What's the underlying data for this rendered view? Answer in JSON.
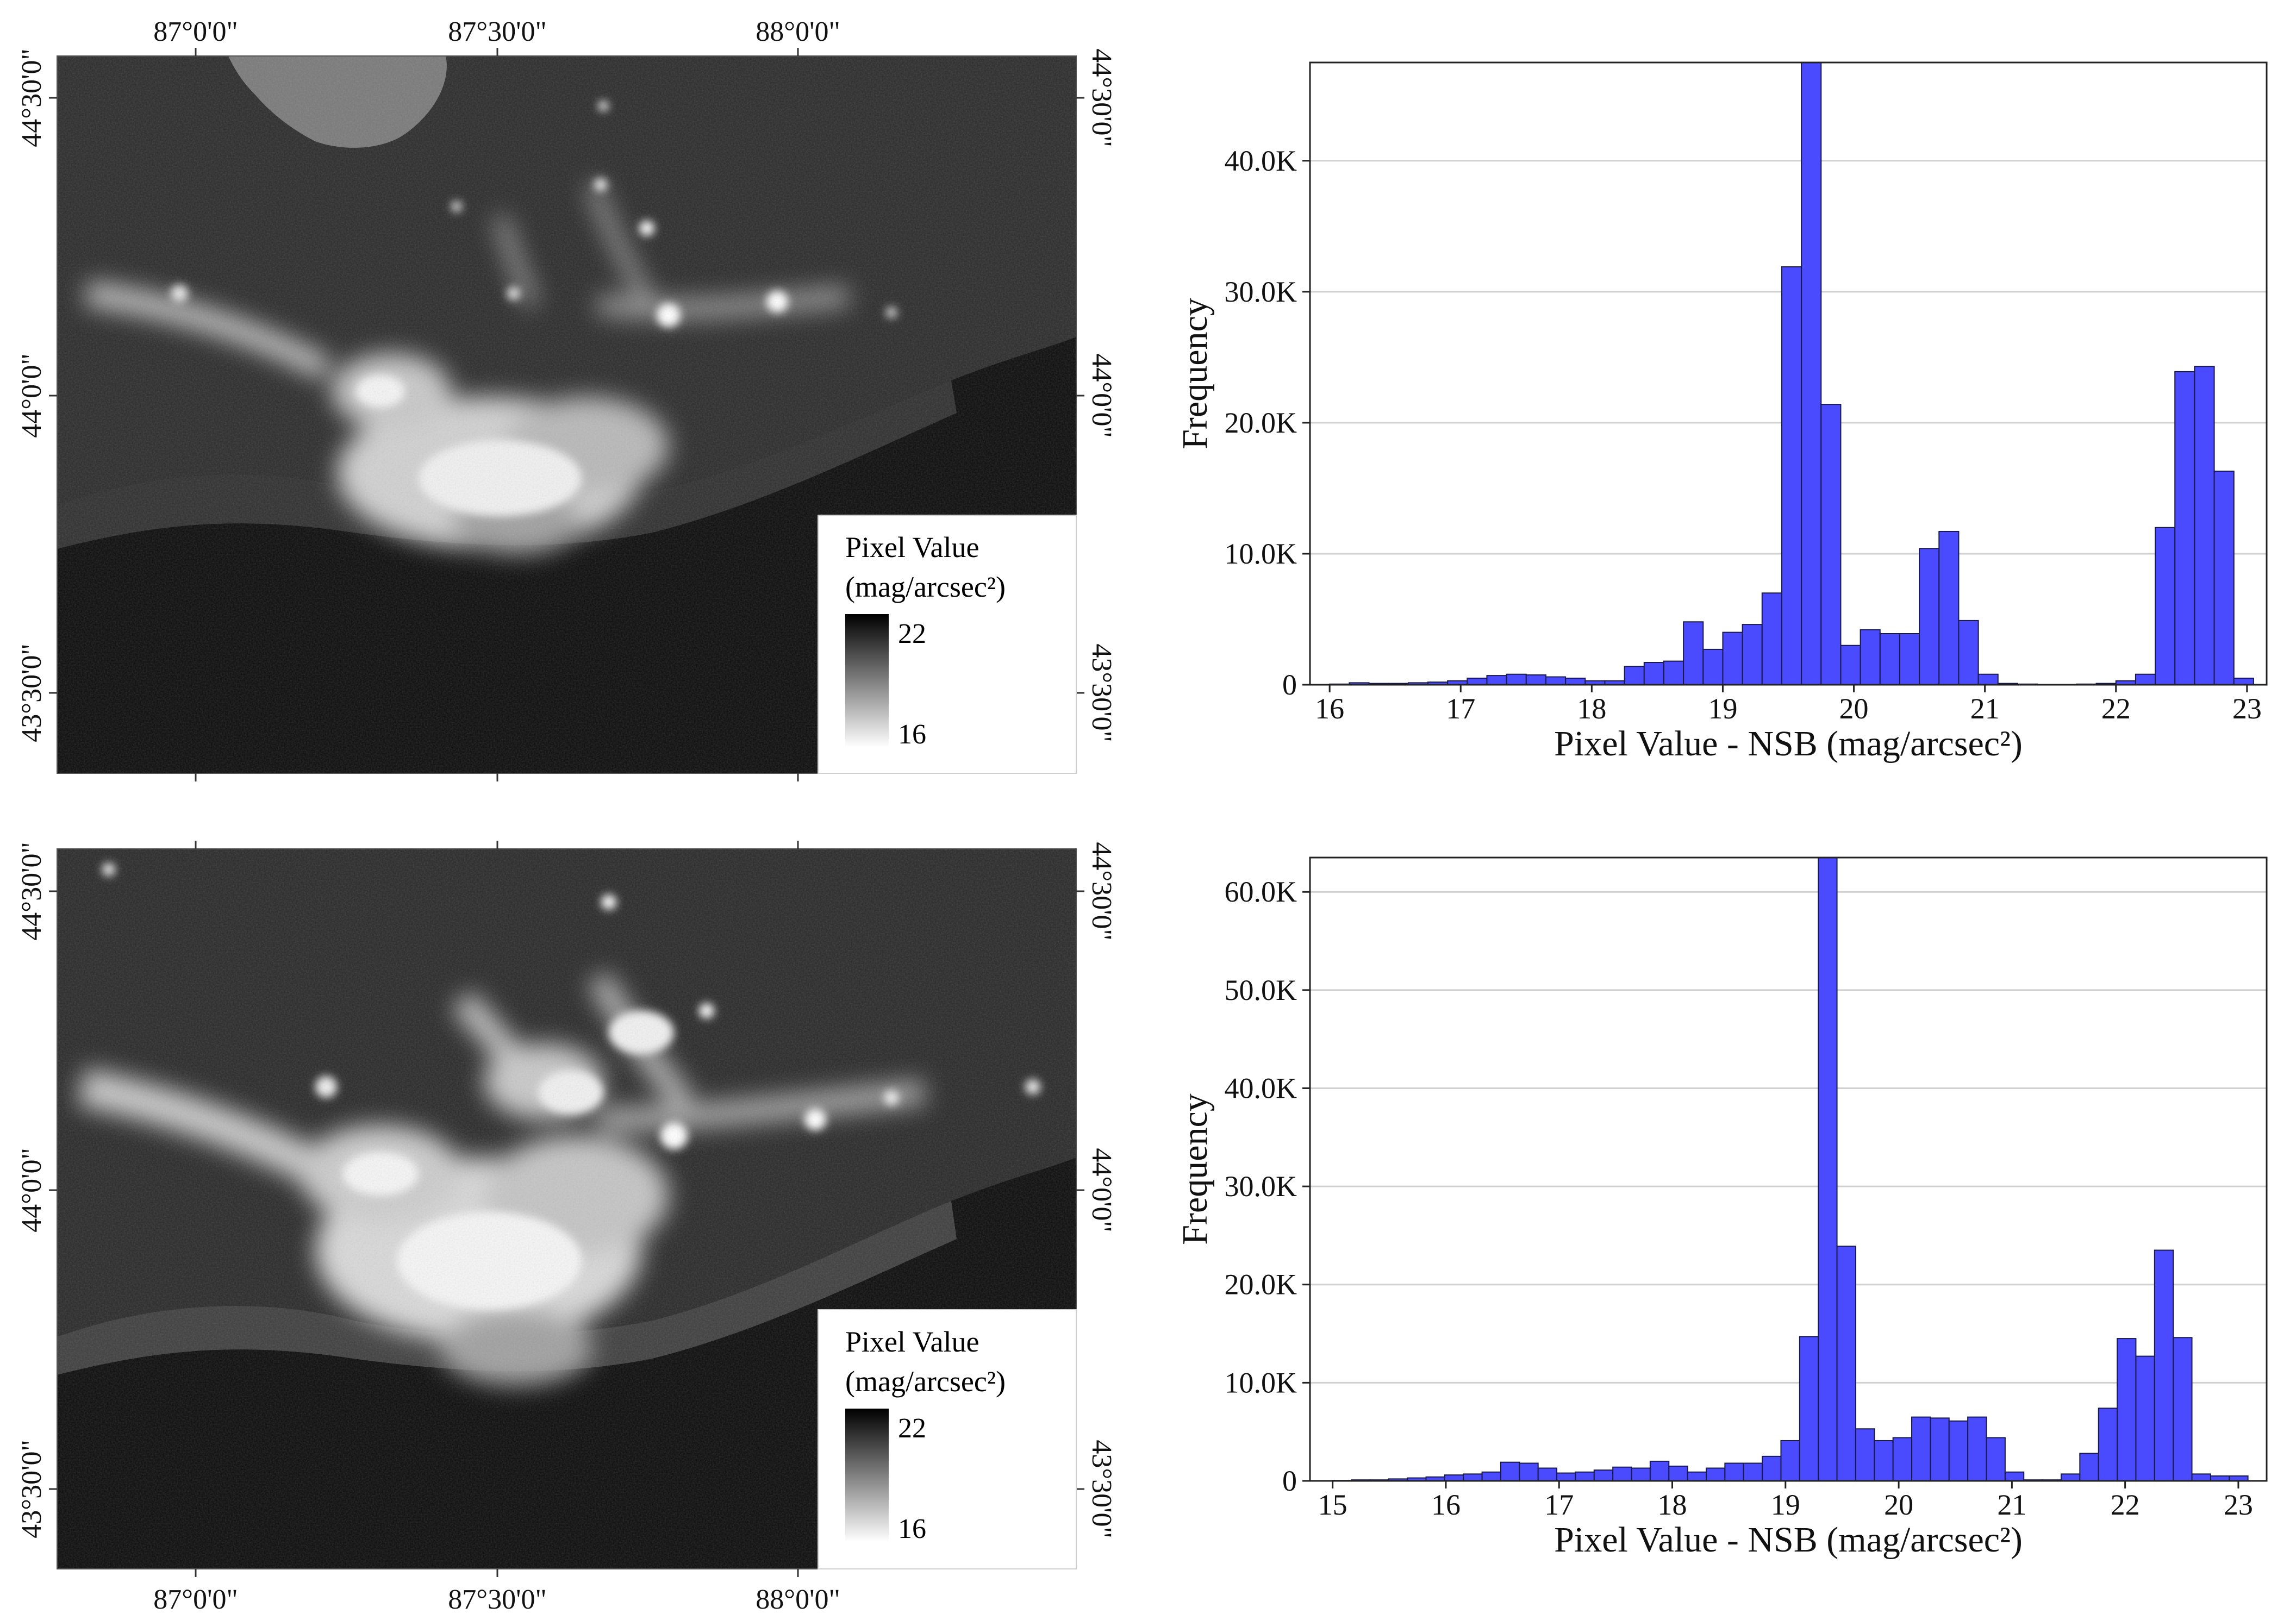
{
  "maps": [
    {
      "id": "map-top",
      "top_labels": [
        "87°0'0\"",
        "87°30'0\"",
        "88°0'0\""
      ],
      "bottom_labels": [],
      "lat_labels": [
        "44°30'0\"",
        "44°0'0\"",
        "43°30'0\""
      ],
      "legend": {
        "title_line1": "Pixel Value",
        "title_line2": "(mag/arcsec²)",
        "max_label": "22",
        "min_label": "16"
      },
      "colors": {
        "background": "#2c2c2c",
        "dark": "#0b0b0b",
        "light": "#e6e6e6"
      }
    },
    {
      "id": "map-bottom",
      "top_labels": [],
      "bottom_labels": [
        "87°0'0\"",
        "87°30'0\"",
        "88°0'0\""
      ],
      "lat_labels": [
        "44°30'0\"",
        "44°0'0\"",
        "43°30'0\""
      ],
      "legend": {
        "title_line1": "Pixel Value",
        "title_line2": "(mag/arcsec²)",
        "max_label": "22",
        "min_label": "16"
      },
      "colors": {
        "background": "#2a2a2a",
        "dark": "#0b0b0b",
        "light": "#ededed"
      }
    }
  ],
  "chart_data": [
    {
      "type": "bar",
      "xlabel": "Pixel Value - NSB (mag/arcsec²)",
      "ylabel": "Frequency",
      "xlim": [
        15.85,
        23.15
      ],
      "ylim": [
        0,
        47500
      ],
      "xticks": [
        16,
        17,
        18,
        19,
        20,
        21,
        22,
        23
      ],
      "yticks": [
        0,
        10000,
        20000,
        30000,
        40000
      ],
      "ytick_labels": [
        "0",
        "10.0K",
        "20.0K",
        "30.0K",
        "40.0K"
      ],
      "grid": "horizontal",
      "bar_color": "#4a4aff",
      "bin_width": 0.15,
      "bins_start": [
        16.0,
        16.15,
        16.3,
        16.45,
        16.6,
        16.75,
        16.9,
        17.05,
        17.2,
        17.35,
        17.5,
        17.65,
        17.8,
        17.95,
        18.1,
        18.25,
        18.4,
        18.55,
        18.7,
        18.85,
        19.0,
        19.15,
        19.3,
        19.45,
        19.6,
        19.75,
        19.9,
        20.05,
        20.2,
        20.35,
        20.5,
        20.65,
        20.8,
        20.95,
        21.1,
        21.25,
        21.4,
        21.55,
        21.7,
        21.85,
        22.0,
        22.15,
        22.3,
        22.45,
        22.6,
        22.75,
        22.9
      ],
      "values": [
        50,
        150,
        100,
        100,
        150,
        200,
        300,
        500,
        700,
        800,
        750,
        600,
        500,
        300,
        300,
        1400,
        1700,
        1800,
        4800,
        2700,
        4000,
        4600,
        7000,
        31900,
        47500,
        21400,
        3000,
        4200,
        3900,
        3900,
        10400,
        11700,
        4900,
        800,
        100,
        50,
        0,
        0,
        50,
        100,
        300,
        800,
        12000,
        23900,
        24300,
        16300,
        500
      ]
    },
    {
      "type": "bar",
      "xlabel": "Pixel Value - NSB (mag/arcsec²)",
      "ylabel": "Frequency",
      "xlim": [
        14.8,
        23.25
      ],
      "ylim": [
        0,
        63500
      ],
      "xticks": [
        15,
        16,
        17,
        18,
        19,
        20,
        21,
        22,
        23
      ],
      "yticks": [
        0,
        10000,
        20000,
        30000,
        40000,
        50000,
        60000
      ],
      "ytick_labels": [
        "0",
        "10.0K",
        "20.0K",
        "30.0K",
        "40.0K",
        "50.0K",
        "60.0K"
      ],
      "grid": "horizontal",
      "bar_color": "#4a4aff",
      "bin_width": 0.165,
      "bins_start": [
        15.0,
        15.165,
        15.33,
        15.495,
        15.66,
        15.825,
        15.99,
        16.155,
        16.32,
        16.485,
        16.65,
        16.815,
        16.98,
        17.145,
        17.31,
        17.475,
        17.64,
        17.805,
        17.97,
        18.135,
        18.3,
        18.465,
        18.63,
        18.795,
        18.96,
        19.125,
        19.29,
        19.455,
        19.62,
        19.785,
        19.95,
        20.115,
        20.28,
        20.445,
        20.61,
        20.775,
        20.94,
        21.105,
        21.27,
        21.435,
        21.6,
        21.765,
        21.93,
        22.095,
        22.26,
        22.425,
        22.59,
        22.755,
        22.92
      ],
      "values": [
        50,
        100,
        100,
        200,
        300,
        400,
        600,
        700,
        900,
        1900,
        1800,
        1300,
        800,
        900,
        1100,
        1400,
        1300,
        2000,
        1500,
        900,
        1300,
        1800,
        1800,
        2500,
        4100,
        14700,
        63500,
        23900,
        5300,
        4100,
        4400,
        6500,
        6400,
        6100,
        6500,
        4400,
        900,
        100,
        100,
        700,
        2800,
        7400,
        14500,
        12700,
        23500,
        14600,
        700,
        500,
        500
      ]
    }
  ]
}
